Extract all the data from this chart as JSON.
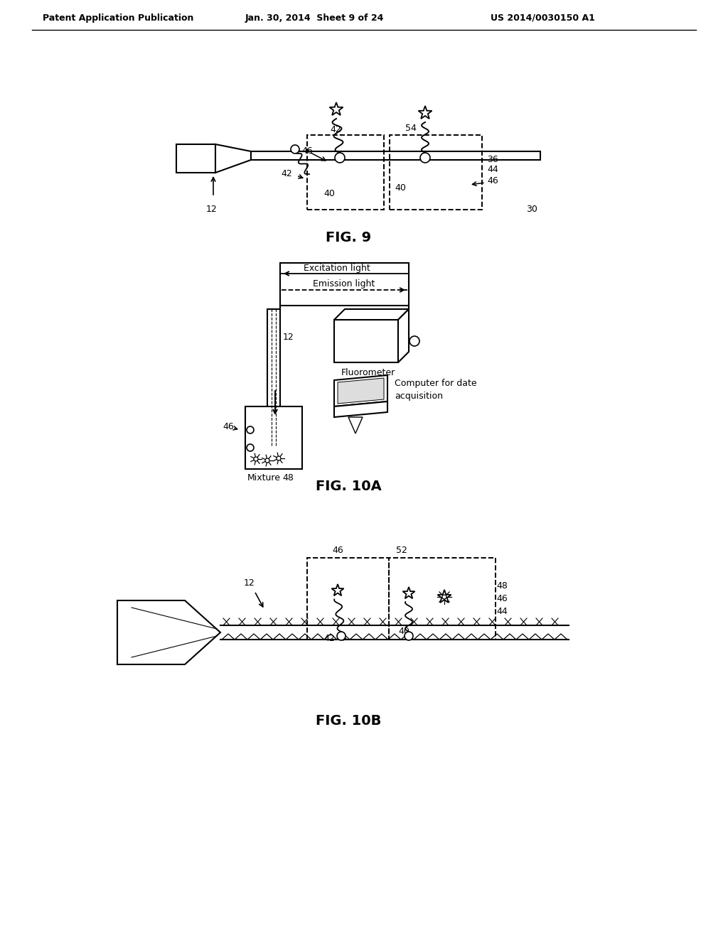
{
  "bg_color": "#ffffff",
  "text_color": "#000000",
  "header_left": "Patent Application Publication",
  "header_center": "Jan. 30, 2014  Sheet 9 of 24",
  "header_right": "US 2014/0030150 A1",
  "fig9_label": "FIG. 9",
  "fig10a_label": "FIG. 10A",
  "fig10b_label": "FIG. 10B",
  "lw": 1.5,
  "fs": 9,
  "fig_fs": 14
}
